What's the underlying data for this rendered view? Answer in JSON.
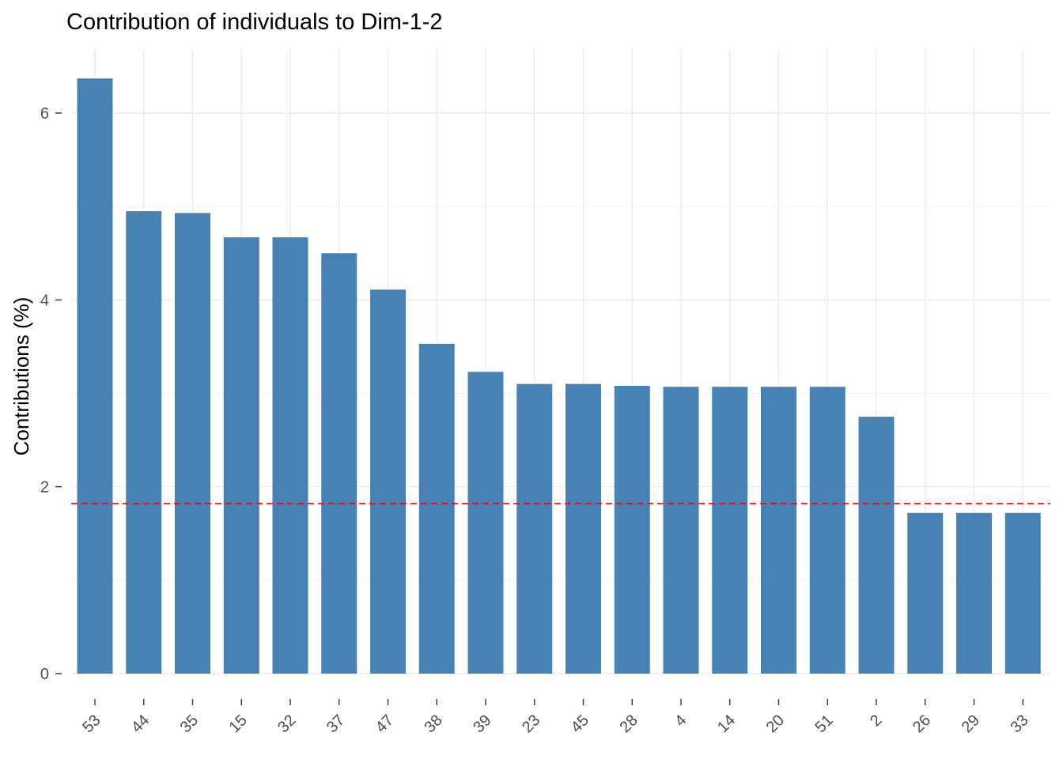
{
  "chart_data": {
    "type": "bar",
    "title": "Contribution of individuals to Dim-1-2",
    "xlabel": "",
    "ylabel": "Contributions (%)",
    "categories": [
      "53",
      "44",
      "35",
      "15",
      "32",
      "37",
      "47",
      "38",
      "39",
      "23",
      "45",
      "28",
      "4",
      "14",
      "20",
      "51",
      "2",
      "26",
      "29",
      "33"
    ],
    "values": [
      6.37,
      4.95,
      4.93,
      4.67,
      4.67,
      4.5,
      4.11,
      3.53,
      3.23,
      3.1,
      3.1,
      3.08,
      3.07,
      3.07,
      3.07,
      3.07,
      2.75,
      1.72,
      1.72,
      1.72
    ],
    "ylim": [
      0,
      6.7
    ],
    "yticks": [
      0,
      2,
      4,
      6
    ],
    "reference_line": {
      "value": 1.82,
      "color": "#FF0000",
      "style": "dashed"
    },
    "bar_color": "#4682B4",
    "grid": true,
    "legend": "none"
  }
}
